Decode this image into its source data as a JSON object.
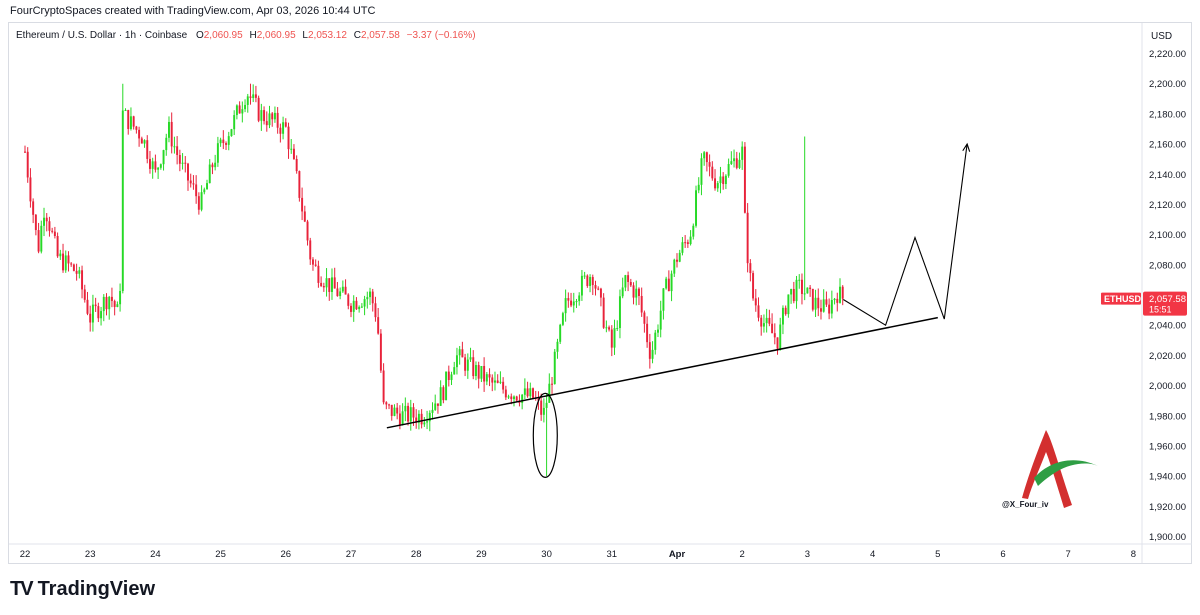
{
  "header": {
    "caption": "FourCryptoSpaces created with TradingView.com, Apr 03, 2026 10:44 UTC"
  },
  "legend": {
    "symbol": "Ethereum / U.S. Dollar · 1h · Coinbase",
    "o_label": "O",
    "o_value": "2,060.95",
    "h_label": "H",
    "h_value": "2,060.95",
    "l_label": "L",
    "l_value": "2,053.12",
    "c_label": "C",
    "c_value": "2,057.58",
    "change": "−3.37 (−0.16%)"
  },
  "price_scale": {
    "currency": "USD",
    "ticks": [
      "2,220.00",
      "2,200.00",
      "2,180.00",
      "2,160.00",
      "2,140.00",
      "2,120.00",
      "2,100.00",
      "2,080.00",
      "2,060.00",
      "2,040.00",
      "2,020.00",
      "2,000.00",
      "1,980.00",
      "1,960.00",
      "1,940.00",
      "1,920.00",
      "1,900.00"
    ],
    "last_price_label": "ETHUSD",
    "last_price": "2,057.58",
    "countdown": "15:51"
  },
  "time_scale": {
    "ticks": [
      "22",
      "23",
      "24",
      "25",
      "26",
      "27",
      "28",
      "29",
      "30",
      "31",
      "Apr",
      "2",
      "3",
      "4",
      "5",
      "6",
      "7",
      "8"
    ]
  },
  "colors": {
    "up": "#26d926",
    "down": "#e8223a",
    "last_price_bg": "#f23645",
    "drawing": "#000000"
  },
  "chart_data": {
    "type": "candlestick",
    "title": "Ethereum / U.S. Dollar · 1h · Coinbase",
    "ylim": [
      1890,
      2230
    ],
    "y_unit": "USD",
    "x_axis": "date (Mar 22 – Apr 8, 2026), hourly candles",
    "last_close": 2057.58,
    "path_points": [
      {
        "day": 22.0,
        "price": 2155
      },
      {
        "day": 22.2,
        "price": 2090
      },
      {
        "day": 22.3,
        "price": 2120
      },
      {
        "day": 22.5,
        "price": 2085
      },
      {
        "day": 22.8,
        "price": 2075
      },
      {
        "day": 23.0,
        "price": 2045
      },
      {
        "day": 23.3,
        "price": 2060
      },
      {
        "day": 23.45,
        "price": 2045
      },
      {
        "day": 23.5,
        "price": 2180
      },
      {
        "day": 23.8,
        "price": 2165
      },
      {
        "day": 24.0,
        "price": 2140
      },
      {
        "day": 24.2,
        "price": 2170
      },
      {
        "day": 24.4,
        "price": 2145
      },
      {
        "day": 24.7,
        "price": 2120
      },
      {
        "day": 24.9,
        "price": 2150
      },
      {
        "day": 25.2,
        "price": 2175
      },
      {
        "day": 25.4,
        "price": 2195
      },
      {
        "day": 25.6,
        "price": 2180
      },
      {
        "day": 26.0,
        "price": 2170
      },
      {
        "day": 26.2,
        "price": 2130
      },
      {
        "day": 26.4,
        "price": 2080
      },
      {
        "day": 26.7,
        "price": 2065
      },
      {
        "day": 27.0,
        "price": 2055
      },
      {
        "day": 27.3,
        "price": 2060
      },
      {
        "day": 27.4,
        "price": 2045
      },
      {
        "day": 27.5,
        "price": 1985
      },
      {
        "day": 27.8,
        "price": 1980
      },
      {
        "day": 28.1,
        "price": 1980
      },
      {
        "day": 28.4,
        "price": 1995
      },
      {
        "day": 28.6,
        "price": 2020
      },
      {
        "day": 28.9,
        "price": 2010
      },
      {
        "day": 29.2,
        "price": 2000
      },
      {
        "day": 29.5,
        "price": 1995
      },
      {
        "day": 29.8,
        "price": 1992
      },
      {
        "day": 29.95,
        "price": 1980
      },
      {
        "day": 30.1,
        "price": 2010
      },
      {
        "day": 30.3,
        "price": 2055
      },
      {
        "day": 30.5,
        "price": 2065
      },
      {
        "day": 30.7,
        "price": 2075
      },
      {
        "day": 30.9,
        "price": 2040
      },
      {
        "day": 31.0,
        "price": 2025
      },
      {
        "day": 31.2,
        "price": 2070
      },
      {
        "day": 31.4,
        "price": 2060
      },
      {
        "day": 31.6,
        "price": 2020
      },
      {
        "day": 31.8,
        "price": 2060
      },
      {
        "day": 32.0,
        "price": 2085
      },
      {
        "day": 32.2,
        "price": 2100
      },
      {
        "day": 32.4,
        "price": 2150
      },
      {
        "day": 32.6,
        "price": 2135
      },
      {
        "day": 32.8,
        "price": 2145
      },
      {
        "day": 33.0,
        "price": 2155
      },
      {
        "day": 33.05,
        "price": 2100
      },
      {
        "day": 33.15,
        "price": 2060
      },
      {
        "day": 33.35,
        "price": 2040
      },
      {
        "day": 33.55,
        "price": 2030
      },
      {
        "day": 33.7,
        "price": 2060
      },
      {
        "day": 33.9,
        "price": 2065
      },
      {
        "day": 34.1,
        "price": 2055
      },
      {
        "day": 34.3,
        "price": 2050
      },
      {
        "day": 34.45,
        "price": 2062
      },
      {
        "day": 34.55,
        "price": 2057.58
      }
    ],
    "extreme_wicks": [
      {
        "day": 23.5,
        "high": 2200
      },
      {
        "day": 25.45,
        "high": 2200
      },
      {
        "day": 29.98,
        "low": 1940
      },
      {
        "day": 33.95,
        "high": 2165
      }
    ],
    "annotations": {
      "support_trendline": [
        {
          "day": 27.55,
          "price": 1972
        },
        {
          "day": 36.0,
          "price": 2045
        }
      ],
      "ellipse_day": 29.98,
      "projection_path": [
        {
          "day": 34.55,
          "price": 2057
        },
        {
          "day": 35.2,
          "price": 2040
        },
        {
          "day": 35.65,
          "price": 2098
        },
        {
          "day": 36.1,
          "price": 2044
        },
        {
          "day": 36.45,
          "price": 2160
        }
      ]
    }
  },
  "watermark": {
    "handle": "@X_Four_iv"
  },
  "brand": {
    "name": "TradingView",
    "logo_mark": "TV"
  }
}
